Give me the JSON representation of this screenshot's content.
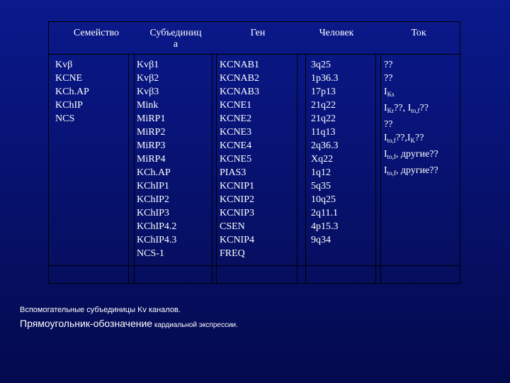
{
  "table": {
    "headers": [
      "Семейство",
      "Субъединица",
      "Ген",
      "Человек",
      "Ток"
    ],
    "header_subunit_line1": "Субъединиц",
    "header_subunit_line2": "а",
    "family": [
      "Kvβ",
      "KCNE",
      "KCh.AP",
      "KChIP",
      "NCS"
    ],
    "subunit": [
      "Kvβ1",
      "Kvβ2",
      "Kvβ3",
      "Mink",
      "MiRP1",
      "MiRP2",
      "MiRP3",
      "MiRP4",
      "KCh.AP",
      "KChIP1",
      "KChIP2",
      "KChIP3",
      "KChIP4.2",
      "KChIP4.3",
      "NCS-1"
    ],
    "gene": [
      "KCNAB1",
      "KCNAB2",
      "KCNAB3",
      "KCNE1",
      "KCNE2",
      "KCNE3",
      "KCNE4",
      "KCNE5",
      "PIAS3",
      "KCNIP1",
      "KCNIP2",
      "KCNIP3",
      "CSEN",
      "KCNIP4",
      "FREQ"
    ],
    "human": [
      "3q25",
      "1p36.3",
      "17p13",
      "21q22",
      "21q22",
      "11q13",
      "2q36.3",
      "Xq22",
      "1q12",
      "5q35",
      "10q25",
      "2q11.1",
      "4p15.3",
      "9q34"
    ],
    "current": {
      "r1": "??",
      "r2": "??",
      "r3_main": "I",
      "r3_sub": "Ks",
      "r4_main": "I",
      "r4_sub": "Kr",
      "r4_mid": "??, I",
      "r4_sub2": "to,f",
      "r4_end": "??",
      "r5": "??",
      "r6_main": "I",
      "r6_sub": "to,f",
      "r6_mid": "??,I",
      "r6_sub2": "K",
      "r6_end": "??",
      "r7_main": "I",
      "r7_sub": "to,f",
      "r7_end": ", другие??",
      "r8_main": "I",
      "r8_sub": "to,f",
      "r8_end": ", другие??"
    }
  },
  "captions": {
    "line1": "Вспомогательные субъединицы Kv каналов.",
    "line2_large": "Прямоугольник-обозначение",
    "line2_small": " кардиальной экспрессии."
  }
}
